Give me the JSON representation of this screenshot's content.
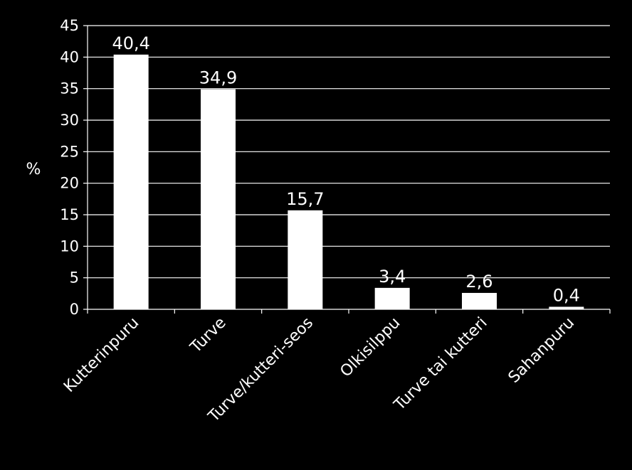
{
  "chart_data": {
    "type": "bar",
    "categories": [
      "Kutterinpuru",
      "Turve",
      "Turve/kutteri-seos",
      "Olkisilppu",
      "Turve tai kutteri",
      "Sahanpuru"
    ],
    "values": [
      40.4,
      34.9,
      15.7,
      3.4,
      2.6,
      0.4
    ],
    "data_labels": [
      "40,4",
      "34,9",
      "15,7",
      "3,4",
      "2,6",
      "0,4"
    ],
    "title": "",
    "xlabel": "",
    "ylabel": "%",
    "ylim": [
      0,
      45
    ],
    "yticks": [
      0,
      5,
      10,
      15,
      20,
      25,
      30,
      35,
      40,
      45
    ],
    "grid": true,
    "legend": "none",
    "colors": {
      "background": "#000000",
      "bars": "#ffffff",
      "grid": "#ffffff",
      "text": "#ffffff"
    }
  }
}
